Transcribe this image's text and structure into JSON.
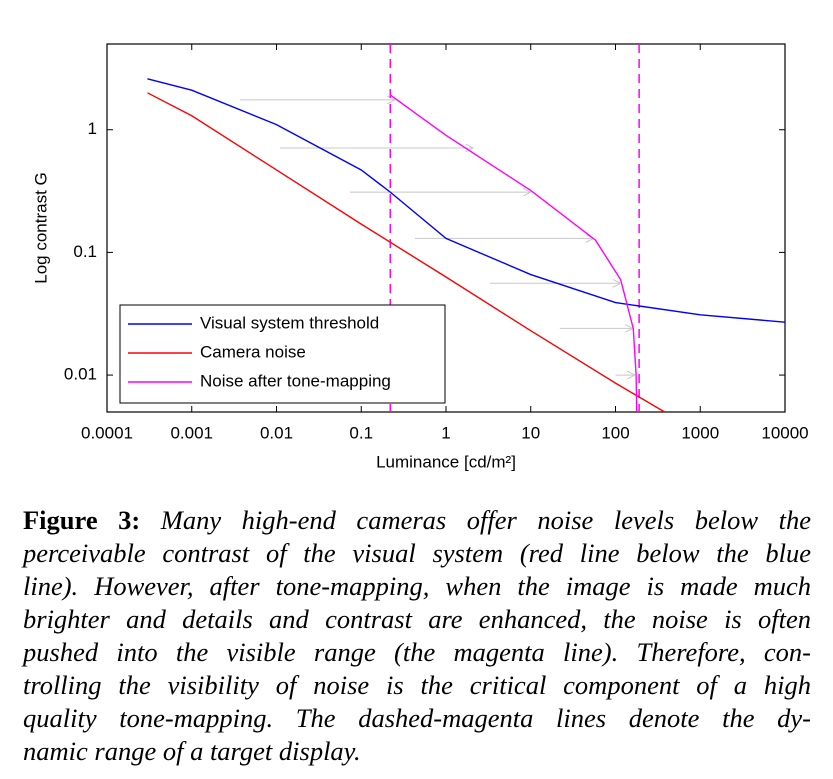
{
  "chart_data": {
    "type": "line",
    "xlabel": "Luminance [cd/m²]",
    "ylabel": "Log contrast G",
    "xscale": "log",
    "yscale": "log",
    "xlim": [
      0.0001,
      10000
    ],
    "ylim": [
      0.005,
      5
    ],
    "xticks": [
      0.0001,
      0.001,
      0.01,
      0.1,
      1,
      10,
      100,
      1000,
      10000
    ],
    "yticks": [
      0.01,
      0.1,
      1
    ],
    "legend": "lower left",
    "series": [
      {
        "name": "Visual system threshold",
        "color": "#0000ff",
        "x": [
          0.0003,
          0.001,
          0.01,
          0.1,
          0.22,
          1,
          10,
          100,
          1000,
          10000
        ],
        "values": [
          2.6,
          2.1,
          1.1,
          0.47,
          0.31,
          0.13,
          0.066,
          0.039,
          0.031,
          0.027
        ]
      },
      {
        "name": "Camera noise",
        "color": "#ff0000",
        "x": [
          0.0003,
          0.001,
          0.01,
          0.1,
          1,
          10,
          100,
          380
        ],
        "values": [
          2.0,
          1.3,
          0.47,
          0.17,
          0.063,
          0.023,
          0.0086,
          0.005
        ]
      },
      {
        "name": "Noise after tone-mapping",
        "color": "#ff00ff",
        "x": [
          0.22,
          1,
          10,
          58,
          115,
          162,
          175,
          178
        ],
        "values": [
          1.92,
          0.9,
          0.32,
          0.126,
          0.06,
          0.024,
          0.01,
          0.005
        ]
      }
    ],
    "display_range": {
      "color": "#ff00ff",
      "x": [
        0.22,
        190
      ]
    },
    "arrows": {
      "color": "#c8c8c8",
      "y": [
        1.75,
        0.71,
        0.31,
        0.13,
        0.056,
        0.024,
        0.01
      ],
      "x_from": [
        0.0037,
        0.011,
        0.074,
        0.43,
        3.3,
        22,
        100
      ],
      "x_to": [
        0.25,
        2.1,
        10,
        55,
        115,
        160,
        170
      ]
    }
  },
  "caption": {
    "label": "Figure 3:",
    "lines": [
      "Many high-end cameras offer noise levels below the",
      "perceivable contrast of the visual system (red line below the blue",
      "line). However, after tone-mapping, when the image is made much",
      "brighter and details and contrast are enhanced, the noise is often",
      "pushed into the visible range (the magenta line). Therefore, con-",
      "trolling the visibility of noise is the critical component of a high",
      "quality tone-mapping.  The dashed-magenta lines denote the dy-",
      "namic range of a target display."
    ]
  }
}
